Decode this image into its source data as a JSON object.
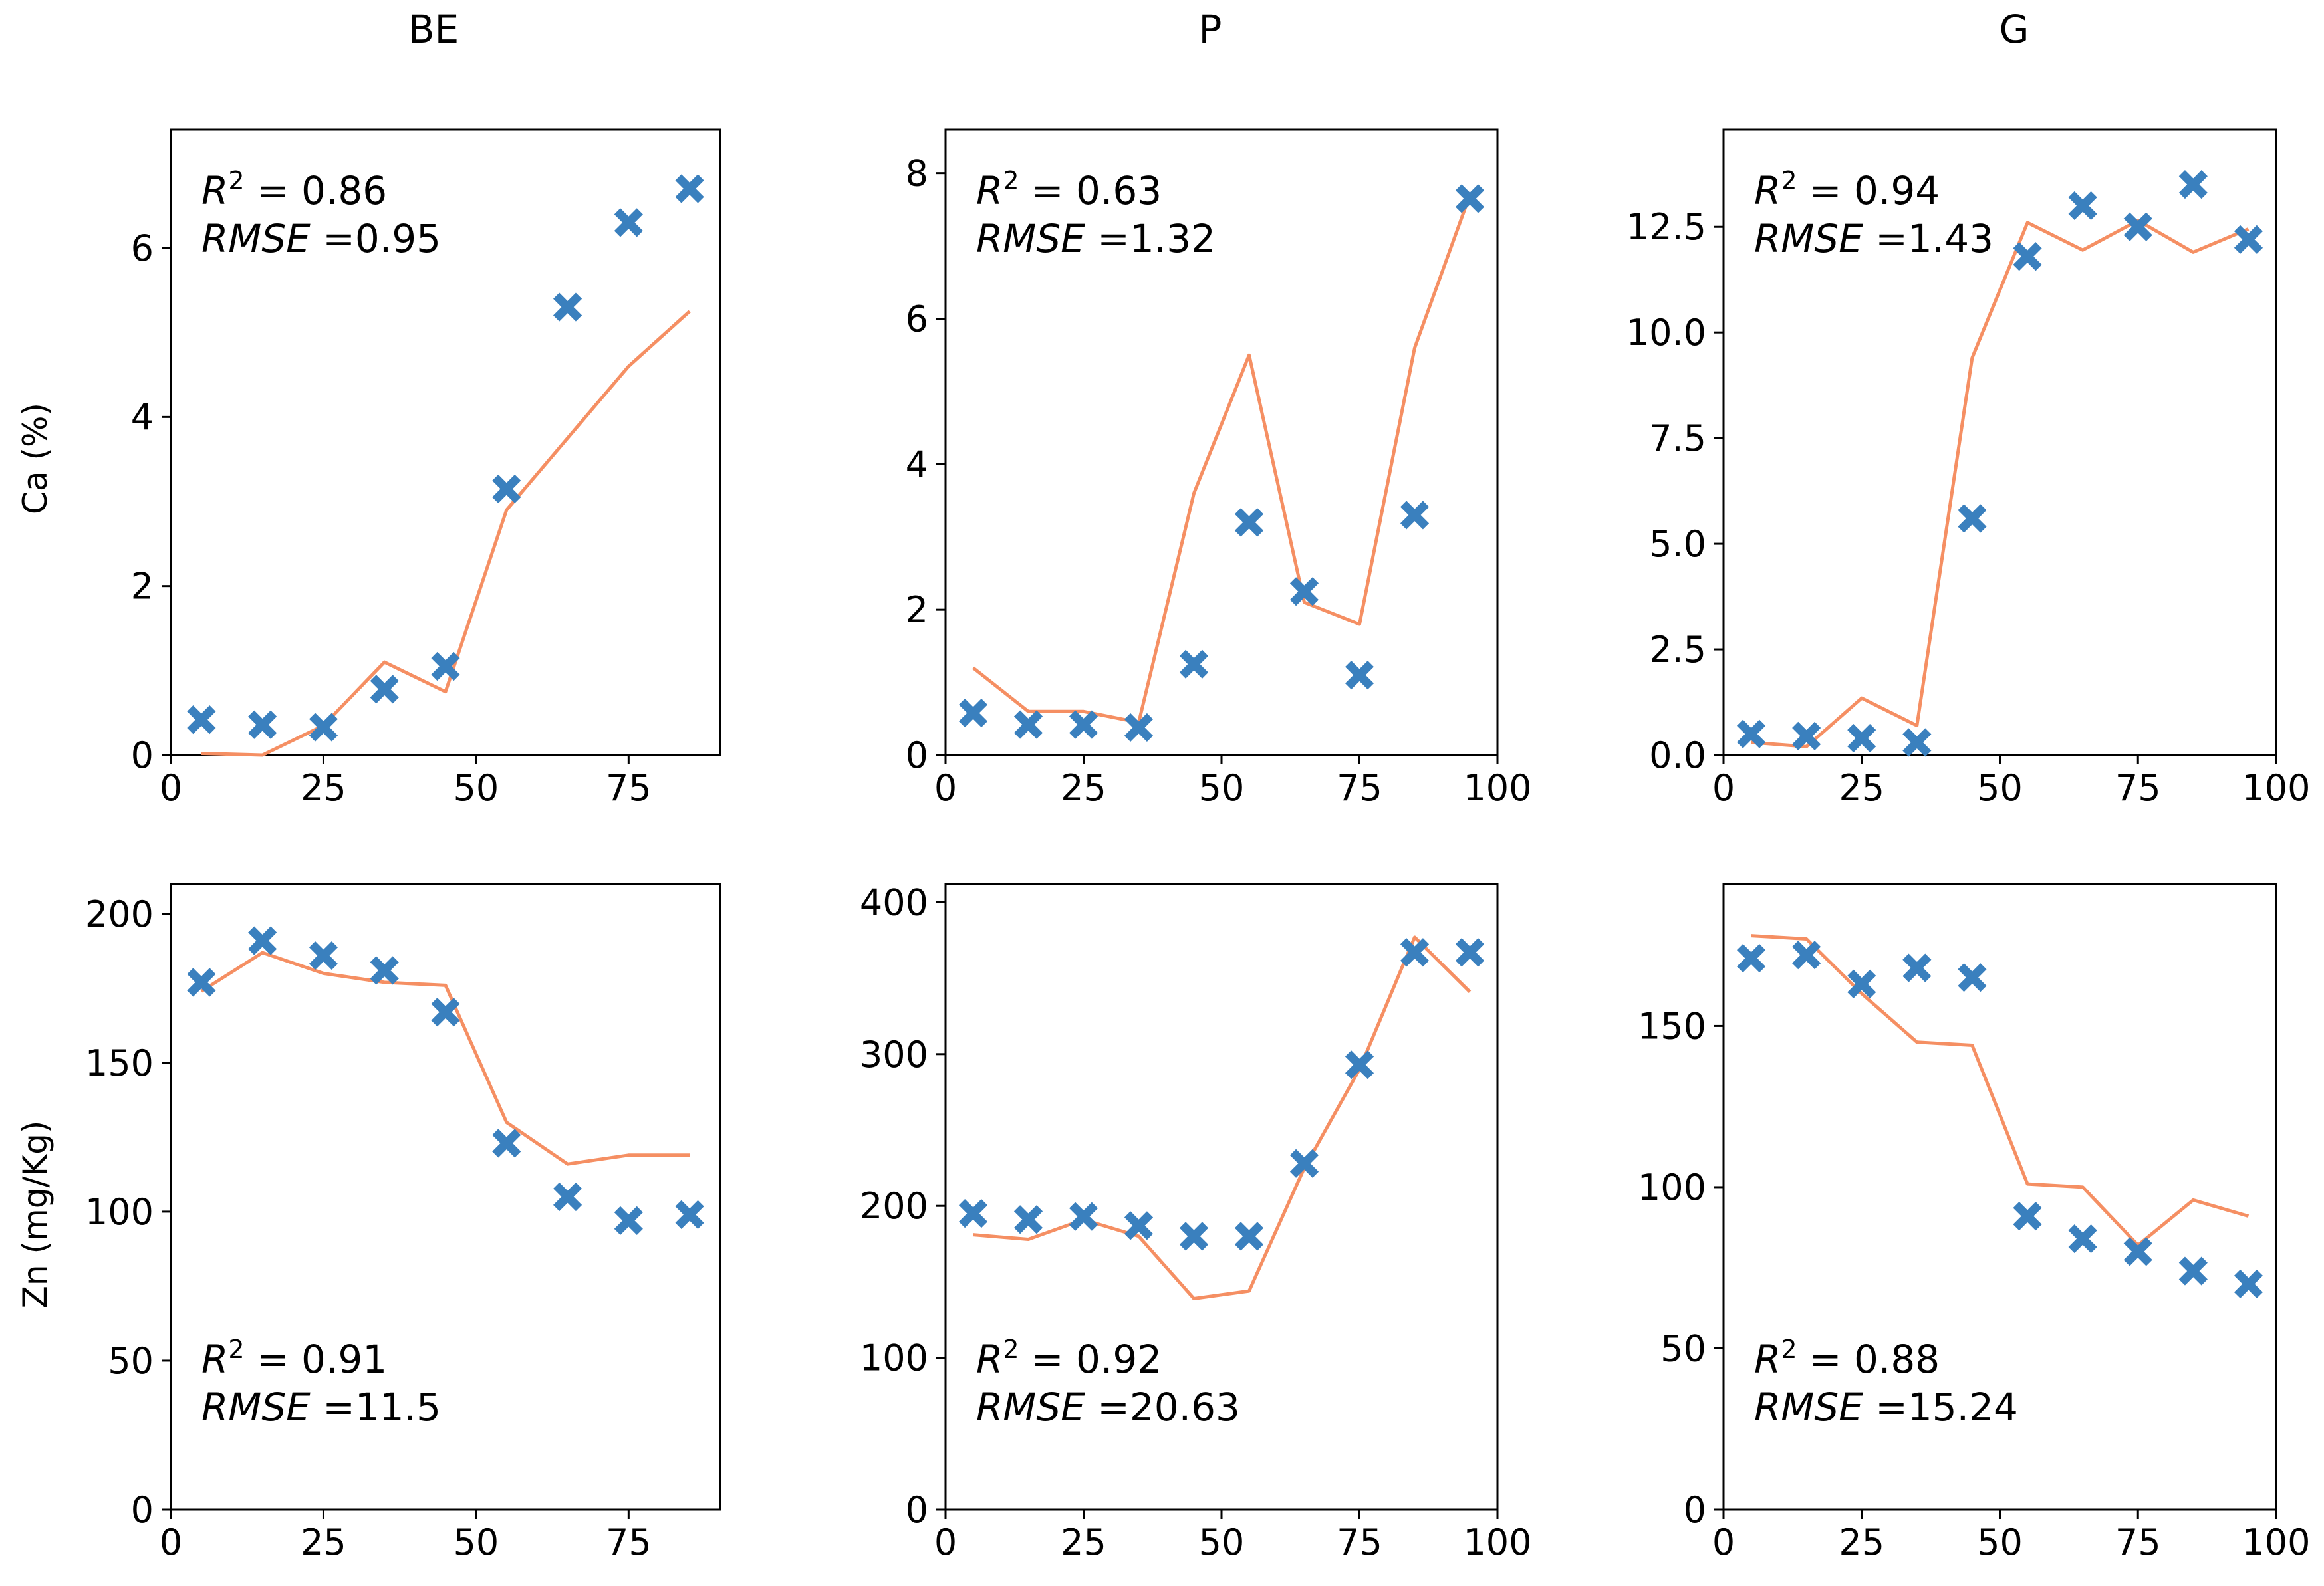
{
  "figure": {
    "column_titles": [
      "BE",
      "P",
      "G"
    ],
    "row_labels": [
      "Ca (%)",
      "Zn (mg/Kg)"
    ]
  },
  "colors": {
    "scatter": "#3A80BE",
    "line": "#F58F63",
    "axes": "#000000",
    "background": "#ffffff"
  },
  "chart_data": [
    {
      "type": "scatter",
      "id": "ca-be",
      "row": 0,
      "col": 0,
      "title": "BE",
      "ylabel": "Ca (%)",
      "xlim": [
        0,
        90
      ],
      "ylim": [
        0,
        7.4
      ],
      "xticks": [
        0,
        25,
        50,
        75
      ],
      "yticks": [
        0,
        2,
        4,
        6
      ],
      "annotation": {
        "r2": "0.86",
        "rmse": "0.95",
        "placement": "top-left"
      },
      "series": [
        {
          "kind": "measured",
          "marker": "x",
          "x": [
            5,
            15,
            25,
            35,
            45,
            55,
            65,
            75,
            85
          ],
          "y": [
            0.42,
            0.36,
            0.33,
            0.78,
            1.05,
            3.15,
            5.3,
            6.3,
            6.7
          ]
        },
        {
          "kind": "predicted",
          "marker": "line",
          "x": [
            5,
            15,
            25,
            35,
            45,
            55,
            65,
            75,
            85
          ],
          "y": [
            0.02,
            0.0,
            0.35,
            1.1,
            0.75,
            2.9,
            3.75,
            4.6,
            5.25
          ]
        }
      ]
    },
    {
      "type": "scatter",
      "id": "ca-p",
      "row": 0,
      "col": 1,
      "title": "P",
      "xlim": [
        0,
        100
      ],
      "ylim": [
        0,
        8.6
      ],
      "xticks": [
        0,
        25,
        50,
        75,
        100
      ],
      "yticks": [
        0,
        2,
        4,
        6,
        8
      ],
      "annotation": {
        "r2": "0.63",
        "rmse": "1.32",
        "placement": "top-left"
      },
      "series": [
        {
          "kind": "measured",
          "marker": "x",
          "x": [
            5,
            15,
            25,
            35,
            45,
            55,
            65,
            75,
            85,
            95
          ],
          "y": [
            0.58,
            0.42,
            0.42,
            0.38,
            1.25,
            3.2,
            2.25,
            1.1,
            3.3,
            7.65
          ]
        },
        {
          "kind": "predicted",
          "marker": "line",
          "x": [
            5,
            15,
            25,
            35,
            45,
            55,
            65,
            75,
            85,
            95
          ],
          "y": [
            1.2,
            0.6,
            0.6,
            0.45,
            3.6,
            5.5,
            2.1,
            1.8,
            5.6,
            7.7
          ]
        }
      ]
    },
    {
      "type": "scatter",
      "id": "ca-g",
      "row": 0,
      "col": 2,
      "title": "G",
      "xlim": [
        0,
        100
      ],
      "ylim": [
        0,
        14.8
      ],
      "xticks": [
        0,
        25,
        50,
        75,
        100
      ],
      "yticks": [
        0.0,
        2.5,
        5.0,
        7.5,
        10.0,
        12.5
      ],
      "yticklabels": [
        "0.0",
        "2.5",
        "5.0",
        "7.5",
        "10.0",
        "12.5"
      ],
      "annotation": {
        "r2": "0.94",
        "rmse": "1.43",
        "placement": "top-left"
      },
      "series": [
        {
          "kind": "measured",
          "marker": "x",
          "x": [
            5,
            15,
            25,
            35,
            45,
            55,
            65,
            75,
            85,
            95
          ],
          "y": [
            0.5,
            0.45,
            0.4,
            0.3,
            5.6,
            11.8,
            13.0,
            12.5,
            13.5,
            12.2
          ]
        },
        {
          "kind": "predicted",
          "marker": "line",
          "x": [
            5,
            15,
            25,
            35,
            45,
            55,
            65,
            75,
            85,
            95
          ],
          "y": [
            0.3,
            0.2,
            1.35,
            0.7,
            9.4,
            12.6,
            11.95,
            12.65,
            11.9,
            12.45
          ]
        }
      ]
    },
    {
      "type": "scatter",
      "id": "zn-be",
      "row": 1,
      "col": 0,
      "ylabel": "Zn (mg/Kg)",
      "xlim": [
        0,
        90
      ],
      "ylim": [
        0,
        210
      ],
      "xticks": [
        0,
        25,
        50,
        75
      ],
      "yticks": [
        0,
        50,
        100,
        150,
        200
      ],
      "annotation": {
        "r2": "0.91",
        "rmse": "11.5",
        "placement": "bottom-left"
      },
      "series": [
        {
          "kind": "measured",
          "marker": "x",
          "x": [
            5,
            15,
            25,
            35,
            45,
            55,
            65,
            75,
            85
          ],
          "y": [
            177,
            191,
            186,
            181,
            167,
            123,
            105,
            97,
            99
          ]
        },
        {
          "kind": "predicted",
          "marker": "line",
          "x": [
            5,
            15,
            25,
            35,
            45,
            55,
            65,
            75,
            85
          ],
          "y": [
            174,
            187,
            180,
            177,
            176,
            130,
            116,
            119,
            119
          ]
        }
      ]
    },
    {
      "type": "scatter",
      "id": "zn-p",
      "row": 1,
      "col": 1,
      "xlim": [
        0,
        100
      ],
      "ylim": [
        0,
        412
      ],
      "xticks": [
        0,
        25,
        50,
        75,
        100
      ],
      "yticks": [
        0,
        100,
        200,
        300,
        400
      ],
      "annotation": {
        "r2": "0.92",
        "rmse": "20.63",
        "placement": "bottom-left"
      },
      "series": [
        {
          "kind": "measured",
          "marker": "x",
          "x": [
            5,
            15,
            25,
            35,
            45,
            55,
            65,
            75,
            85,
            95
          ],
          "y": [
            195,
            191,
            193,
            187,
            180,
            180,
            228,
            293,
            367,
            367
          ]
        },
        {
          "kind": "predicted",
          "marker": "line",
          "x": [
            5,
            15,
            25,
            35,
            45,
            55,
            65,
            75,
            85,
            95
          ],
          "y": [
            181,
            178,
            191,
            180,
            139,
            144,
            225,
            290,
            377,
            341
          ]
        }
      ]
    },
    {
      "type": "scatter",
      "id": "zn-g",
      "row": 1,
      "col": 2,
      "xlim": [
        0,
        100
      ],
      "ylim": [
        0,
        194
      ],
      "xticks": [
        0,
        25,
        50,
        75,
        100
      ],
      "yticks": [
        0,
        50,
        100,
        150
      ],
      "annotation": {
        "r2": "0.88",
        "rmse": "15.24",
        "placement": "bottom-left"
      },
      "series": [
        {
          "kind": "measured",
          "marker": "x",
          "x": [
            5,
            15,
            25,
            35,
            45,
            55,
            65,
            75,
            85,
            95
          ],
          "y": [
            171,
            172,
            163,
            168,
            165,
            91,
            84,
            80,
            74,
            70
          ]
        },
        {
          "kind": "predicted",
          "marker": "line",
          "x": [
            5,
            15,
            25,
            35,
            45,
            55,
            65,
            75,
            85,
            95
          ],
          "y": [
            178,
            177,
            160,
            145,
            144,
            101,
            100,
            82,
            96,
            91
          ]
        }
      ]
    }
  ]
}
